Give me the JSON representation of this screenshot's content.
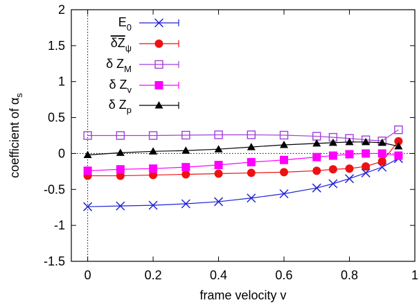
{
  "chart_data": {
    "type": "line",
    "xlabel": "frame velocity v",
    "ylabel": "coefficient of αs",
    "xlim": [
      -0.05,
      1.0
    ],
    "ylim": [
      -1.5,
      2.0
    ],
    "x_ticks": [
      0,
      0.2,
      0.4,
      0.6,
      0.8,
      1
    ],
    "x_tick_labels": [
      "0",
      "0.2",
      "0.4",
      "0.6",
      "0.8",
      "1"
    ],
    "y_ticks": [
      -1.5,
      -1,
      -0.5,
      0,
      0.5,
      1,
      1.5,
      2
    ],
    "y_tick_labels": [
      "-1.5",
      "-1",
      "-0.5",
      "0",
      "0.5",
      "1",
      "1.5",
      "2"
    ],
    "grid": false,
    "legend_position": "top-left",
    "reference_lines": [
      "x=0",
      "y=0"
    ],
    "series": [
      {
        "name": "E0",
        "label_main": "E",
        "label_sub": "0",
        "color": "#1f22d6",
        "marker": "x",
        "x": [
          0,
          0.1,
          0.2,
          0.3,
          0.4,
          0.5,
          0.6,
          0.7,
          0.75,
          0.8,
          0.85,
          0.9,
          0.95
        ],
        "y": [
          -0.74,
          -0.73,
          -0.72,
          -0.7,
          -0.67,
          -0.62,
          -0.56,
          -0.48,
          -0.42,
          -0.35,
          -0.27,
          -0.19,
          -0.07
        ]
      },
      {
        "name": "δZψ (overlined)",
        "label_main": "δZ",
        "label_sub": "ψ",
        "overline": true,
        "color": "#ee1111",
        "marker": "filled-circle",
        "x": [
          0,
          0.1,
          0.2,
          0.3,
          0.4,
          0.5,
          0.6,
          0.7,
          0.75,
          0.8,
          0.85,
          0.9,
          0.95
        ],
        "y": [
          -0.31,
          -0.31,
          -0.3,
          -0.29,
          -0.28,
          -0.27,
          -0.26,
          -0.24,
          -0.22,
          -0.21,
          -0.18,
          -0.11,
          0.17
        ]
      },
      {
        "name": "δ ZM",
        "label_main": "δ Z",
        "label_sub": "M",
        "color": "#a040d8",
        "marker": "open-square",
        "x": [
          0,
          0.1,
          0.2,
          0.3,
          0.4,
          0.5,
          0.6,
          0.7,
          0.75,
          0.8,
          0.85,
          0.9,
          0.95
        ],
        "y": [
          0.25,
          0.25,
          0.25,
          0.255,
          0.26,
          0.26,
          0.255,
          0.24,
          0.225,
          0.21,
          0.19,
          0.175,
          0.33
        ]
      },
      {
        "name": "δ Zv",
        "label_main": "δ Z",
        "label_sub": "v",
        "color": "#ff00ff",
        "marker": "filled-square",
        "x": [
          0,
          0.1,
          0.2,
          0.3,
          0.4,
          0.5,
          0.6,
          0.7,
          0.75,
          0.8,
          0.85,
          0.9,
          0.95
        ],
        "y": [
          -0.24,
          -0.22,
          -0.21,
          -0.19,
          -0.16,
          -0.12,
          -0.09,
          -0.05,
          -0.03,
          -0.01,
          0.0,
          0.0,
          -0.03
        ]
      },
      {
        "name": "δ Zp",
        "label_main": "δ Z",
        "label_sub": "p",
        "color": "#000000",
        "marker": "filled-triangle",
        "x": [
          0,
          0.1,
          0.2,
          0.3,
          0.4,
          0.5,
          0.6,
          0.7,
          0.75,
          0.8,
          0.85,
          0.9,
          0.95
        ],
        "y": [
          -0.02,
          0.01,
          0.03,
          0.04,
          0.06,
          0.09,
          0.12,
          0.14,
          0.15,
          0.16,
          0.16,
          0.15,
          0.1
        ]
      }
    ]
  }
}
